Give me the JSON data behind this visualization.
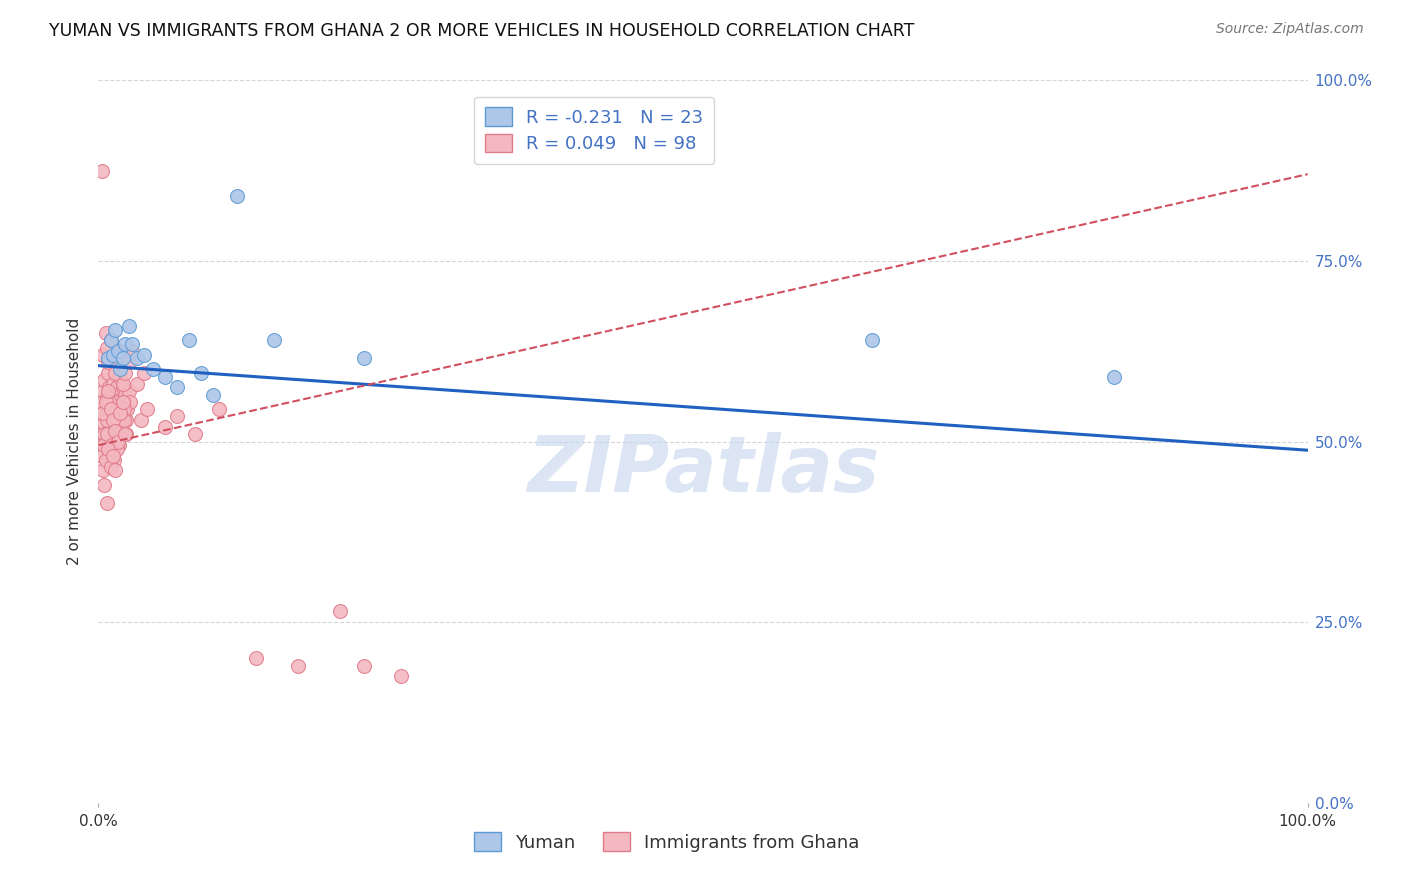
{
  "title": "YUMAN VS IMMIGRANTS FROM GHANA 2 OR MORE VEHICLES IN HOUSEHOLD CORRELATION CHART",
  "source": "Source: ZipAtlas.com",
  "ylabel": "2 or more Vehicles in Household",
  "xlim": [
    0,
    1.0
  ],
  "ylim": [
    0,
    1.0
  ],
  "ytick_labels": [
    "0.0%",
    "25.0%",
    "50.0%",
    "75.0%",
    "100.0%"
  ],
  "ytick_positions": [
    0.0,
    0.25,
    0.5,
    0.75,
    1.0
  ],
  "grid_color": "#cccccc",
  "background_color": "#ffffff",
  "yuman_color": "#aec6e8",
  "ghana_color": "#f4b8c1",
  "yuman_edge_color": "#5b9bd5",
  "ghana_edge_color": "#e07b8a",
  "trend_yuman_color": "#2060c0",
  "trend_ghana_color": "#d05060",
  "legend_R_yuman": "R = -0.231",
  "legend_N_yuman": "N = 23",
  "legend_R_ghana": "R = 0.049",
  "legend_N_ghana": "N = 98",
  "legend_label_yuman": "Yuman",
  "legend_label_ghana": "Immigrants from Ghana",
  "marker_size": 100,
  "title_fontsize": 12.5,
  "axis_label_fontsize": 11,
  "tick_fontsize": 11,
  "legend_fontsize": 13,
  "watermark_text": "ZIPatlas",
  "watermark_color": "#c8d8ee",
  "yuman_trend_x0": 0.0,
  "yuman_trend_y0": 0.605,
  "yuman_trend_x1": 1.0,
  "yuman_trend_y1": 0.488,
  "ghana_trend_x0": 0.0,
  "ghana_trend_y0": 0.495,
  "ghana_trend_x1": 1.0,
  "ghana_trend_y1": 0.87,
  "yuman_x": [
    0.008,
    0.01,
    0.012,
    0.014,
    0.016,
    0.018,
    0.02,
    0.022,
    0.025,
    0.028,
    0.032,
    0.038,
    0.045,
    0.055,
    0.065,
    0.075,
    0.085,
    0.095,
    0.115,
    0.145,
    0.22,
    0.64,
    0.84
  ],
  "yuman_y": [
    0.615,
    0.64,
    0.62,
    0.655,
    0.625,
    0.6,
    0.615,
    0.635,
    0.66,
    0.635,
    0.615,
    0.62,
    0.6,
    0.59,
    0.575,
    0.64,
    0.595,
    0.565,
    0.84,
    0.64,
    0.615,
    0.64,
    0.59
  ],
  "ghana_x": [
    0.003,
    0.004,
    0.005,
    0.006,
    0.007,
    0.008,
    0.009,
    0.01,
    0.011,
    0.012,
    0.013,
    0.014,
    0.015,
    0.016,
    0.017,
    0.018,
    0.019,
    0.02,
    0.021,
    0.022,
    0.023,
    0.024,
    0.025,
    0.026,
    0.003,
    0.005,
    0.007,
    0.009,
    0.011,
    0.013,
    0.015,
    0.017,
    0.019,
    0.021,
    0.023,
    0.003,
    0.005,
    0.007,
    0.009,
    0.011,
    0.013,
    0.015,
    0.017,
    0.019,
    0.021,
    0.003,
    0.005,
    0.007,
    0.009,
    0.011,
    0.013,
    0.015,
    0.017,
    0.004,
    0.006,
    0.008,
    0.01,
    0.012,
    0.014,
    0.016,
    0.018,
    0.02,
    0.022,
    0.004,
    0.006,
    0.008,
    0.01,
    0.012,
    0.014,
    0.035,
    0.04,
    0.055,
    0.065,
    0.08,
    0.1,
    0.13,
    0.165,
    0.2,
    0.22,
    0.25,
    0.003,
    0.004,
    0.006,
    0.007,
    0.008,
    0.01,
    0.012,
    0.014,
    0.016,
    0.018,
    0.02,
    0.022,
    0.025,
    0.028,
    0.032,
    0.038,
    0.005,
    0.007
  ],
  "ghana_y": [
    0.555,
    0.57,
    0.585,
    0.54,
    0.56,
    0.595,
    0.575,
    0.565,
    0.55,
    0.58,
    0.56,
    0.545,
    0.575,
    0.555,
    0.53,
    0.59,
    0.545,
    0.575,
    0.555,
    0.565,
    0.53,
    0.545,
    0.57,
    0.555,
    0.51,
    0.525,
    0.54,
    0.555,
    0.52,
    0.535,
    0.5,
    0.515,
    0.53,
    0.545,
    0.51,
    0.495,
    0.51,
    0.53,
    0.545,
    0.495,
    0.51,
    0.525,
    0.495,
    0.515,
    0.53,
    0.48,
    0.495,
    0.51,
    0.48,
    0.495,
    0.475,
    0.49,
    0.505,
    0.54,
    0.555,
    0.57,
    0.545,
    0.53,
    0.515,
    0.5,
    0.54,
    0.555,
    0.51,
    0.46,
    0.475,
    0.49,
    0.465,
    0.48,
    0.46,
    0.53,
    0.545,
    0.52,
    0.535,
    0.51,
    0.545,
    0.2,
    0.19,
    0.265,
    0.19,
    0.175,
    0.875,
    0.62,
    0.65,
    0.63,
    0.61,
    0.64,
    0.615,
    0.595,
    0.61,
    0.625,
    0.58,
    0.595,
    0.61,
    0.625,
    0.58,
    0.595,
    0.44,
    0.415
  ]
}
